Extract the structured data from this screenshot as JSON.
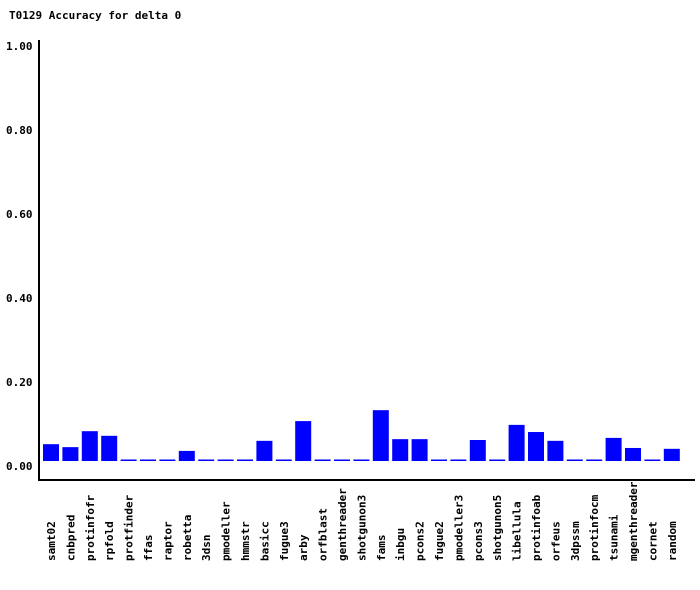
{
  "chart_data": {
    "type": "bar",
    "title": "T0129 Accuracy for delta 0",
    "xlabel": "",
    "ylabel": "",
    "ylim": [
      0,
      1
    ],
    "yticks": [
      "0.00",
      "0.20",
      "0.40",
      "0.60",
      "0.80",
      "1.00"
    ],
    "grid": false,
    "bar_color": "#0000ff",
    "categories": [
      "samt02",
      "cnbpred",
      "protinfofr",
      "rpfold",
      "protfinder",
      "ffas",
      "raptor",
      "robetta",
      "3dsn",
      "pmodeller",
      "hmmstr",
      "basicc",
      "fugue3",
      "arby",
      "orfblast",
      "genthreader",
      "shotgunon3",
      "fams",
      "inbgu",
      "pcons2",
      "fugue2",
      "pmodeller3",
      "pcons3",
      "shotgunon5",
      "libellula",
      "protinfoab",
      "orfeus",
      "3dpssm",
      "protinfocm",
      "tsunami",
      "mgenthreader",
      "cornet",
      "random"
    ],
    "values": [
      0.04,
      0.033,
      0.071,
      0.06,
      0,
      0,
      0,
      0.024,
      0,
      0,
      0,
      0.048,
      0,
      0.095,
      0,
      0,
      0,
      0.121,
      0.052,
      0.052,
      0,
      0,
      0.05,
      0,
      0.086,
      0.069,
      0.048,
      0,
      0,
      0.055,
      0.031,
      0,
      0.029
    ]
  }
}
